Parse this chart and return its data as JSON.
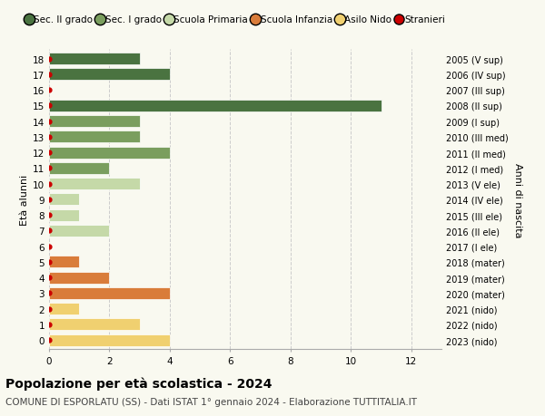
{
  "ages": [
    18,
    17,
    16,
    15,
    14,
    13,
    12,
    11,
    10,
    9,
    8,
    7,
    6,
    5,
    4,
    3,
    2,
    1,
    0
  ],
  "values": [
    3,
    4,
    0,
    11,
    3,
    3,
    4,
    2,
    3,
    1,
    1,
    2,
    0,
    1,
    2,
    4,
    1,
    3,
    4
  ],
  "right_labels": [
    "2005 (V sup)",
    "2006 (IV sup)",
    "2007 (III sup)",
    "2008 (II sup)",
    "2009 (I sup)",
    "2010 (III med)",
    "2011 (II med)",
    "2012 (I med)",
    "2013 (V ele)",
    "2014 (IV ele)",
    "2015 (III ele)",
    "2016 (II ele)",
    "2017 (I ele)",
    "2018 (mater)",
    "2019 (mater)",
    "2020 (mater)",
    "2021 (nido)",
    "2022 (nido)",
    "2023 (nido)"
  ],
  "bar_colors": [
    "#4a7340",
    "#4a7340",
    "#4a7340",
    "#4a7340",
    "#7a9e5e",
    "#7a9e5e",
    "#7a9e5e",
    "#7a9e5e",
    "#c5d9a8",
    "#c5d9a8",
    "#c5d9a8",
    "#c5d9a8",
    "#c5d9a8",
    "#d97c3a",
    "#d97c3a",
    "#d97c3a",
    "#f0d070",
    "#f0d070",
    "#f0d070"
  ],
  "legend_labels": [
    "Sec. II grado",
    "Sec. I grado",
    "Scuola Primaria",
    "Scuola Infanzia",
    "Asilo Nido",
    "Stranieri"
  ],
  "legend_colors": [
    "#4a7340",
    "#7a9e5e",
    "#c5d9a8",
    "#d97c3a",
    "#f0d070",
    "#cc0000"
  ],
  "title": "Popolazione per età scolastica - 2024",
  "subtitle": "COMUNE DI ESPORLATU (SS) - Dati ISTAT 1° gennaio 2024 - Elaborazione TUTTITALIA.IT",
  "ylabel": "Età alunni",
  "right_ylabel": "Anni di nascita",
  "xlim": [
    0,
    13
  ],
  "xticks": [
    0,
    2,
    4,
    6,
    8,
    10,
    12
  ],
  "bg_color": "#f9f9f0",
  "grid_color": "#cccccc",
  "stranieri_dot_color": "#cc0000",
  "bar_height": 0.75
}
